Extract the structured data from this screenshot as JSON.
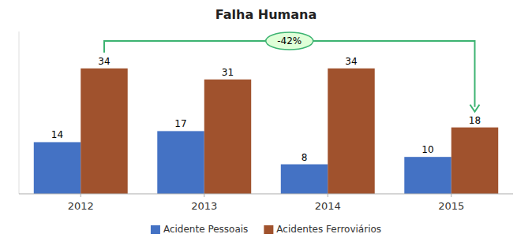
{
  "chart_data": {
    "type": "bar",
    "title": "Falha Humana",
    "categories": [
      "2012",
      "2013",
      "2014",
      "2015"
    ],
    "series": [
      {
        "name": "Acidente Pessoais",
        "color": "#4472C4",
        "values": [
          14,
          17,
          8,
          10
        ]
      },
      {
        "name": "Acidentes Ferroviários",
        "color": "#A0522D",
        "values": [
          34,
          31,
          34,
          18
        ]
      }
    ],
    "ylim": [
      0,
      44
    ],
    "grid": false,
    "legend": "bottom",
    "data_labels": true,
    "tick_labels": "x",
    "annotations": [
      {
        "text": "-42%",
        "color": "#3CB371"
      }
    ]
  }
}
